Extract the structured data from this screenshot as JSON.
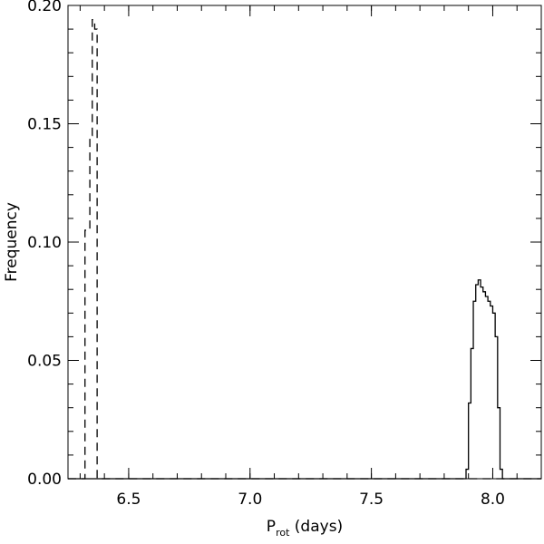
{
  "chart_data": {
    "type": "step",
    "title": "",
    "xlabel": {
      "main": "P",
      "sub": "rot",
      "rest": " (days)"
    },
    "ylabel": "Frequency",
    "xlim": [
      6.25,
      8.2
    ],
    "ylim": [
      0.0,
      0.2
    ],
    "x_ticks": [
      6.5,
      7.0,
      7.5,
      8.0
    ],
    "x_tick_labels": [
      "6.5",
      "7.0",
      "7.5",
      "8.0"
    ],
    "y_ticks": [
      0.0,
      0.05,
      0.1,
      0.15,
      0.2
    ],
    "y_tick_labels": [
      "0.00",
      "0.05",
      "0.10",
      "0.15",
      "0.20"
    ],
    "x_minor_step": 0.1,
    "y_minor_step": 0.01,
    "grid": false,
    "series": [
      {
        "style": "dashed",
        "color": "#000000",
        "x": [
          6.25,
          6.3,
          6.32,
          6.33,
          6.34,
          6.35,
          6.36,
          6.37,
          6.38,
          8.2
        ],
        "y": [
          0.0,
          0.0,
          0.105,
          0.105,
          0.145,
          0.194,
          0.19,
          0.0,
          0.0,
          0.0
        ]
      },
      {
        "style": "solid",
        "color": "#000000",
        "x": [
          6.25,
          7.88,
          7.89,
          7.9,
          7.91,
          7.92,
          7.93,
          7.94,
          7.95,
          7.96,
          7.97,
          7.98,
          7.99,
          8.0,
          8.01,
          8.02,
          8.03,
          8.04,
          8.2
        ],
        "y": [
          0.0,
          0.0,
          0.004,
          0.032,
          0.055,
          0.075,
          0.082,
          0.084,
          0.081,
          0.079,
          0.077,
          0.075,
          0.073,
          0.07,
          0.06,
          0.03,
          0.004,
          0.0,
          0.0
        ]
      }
    ]
  }
}
